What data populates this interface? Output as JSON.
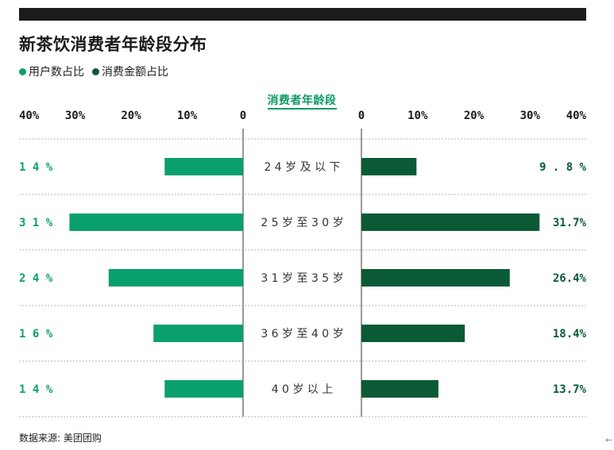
{
  "title": "新茶饮消费者年龄段分布",
  "legend": [
    {
      "label": "用户数占比",
      "color": "#0aa06e"
    },
    {
      "label": "消费金额占比",
      "color": "#0b5a36"
    }
  ],
  "center_title": "消费者年龄段",
  "source": "数据来源: 美团团购",
  "corner_arrow": "←",
  "colors": {
    "user": "#0aa06e",
    "spend": "#0b5a36",
    "grid": "#b5b5b5"
  },
  "chart_data": {
    "type": "bar",
    "categories": [
      "24岁及以下",
      "25岁至30岁",
      "31岁至35岁",
      "36岁至40岁",
      "40岁以上"
    ],
    "category_labels": [
      "2 4 岁 及 以 下",
      "2 5 岁 至 3 0 岁",
      "3 1 岁 至 3 5 岁",
      "3 6 岁 至 4 0 岁",
      "4 0 岁 以 上"
    ],
    "series": [
      {
        "name": "用户数占比",
        "values": [
          14,
          31,
          24,
          16,
          14
        ],
        "labels": [
          "1 4 %",
          "3 1 %",
          "2 4 %",
          "1 6 %",
          "1 4 %"
        ]
      },
      {
        "name": "消费金额占比",
        "values": [
          9.8,
          31.7,
          26.4,
          18.4,
          13.7
        ],
        "labels": [
          "9 . 8 %",
          "31.7%",
          "26.4%",
          "18.4%",
          "13.7%"
        ]
      }
    ],
    "left_ticks": [
      "40%",
      "30%",
      "20%",
      "10%",
      "0"
    ],
    "right_ticks": [
      "0",
      "10%",
      "20%",
      "30%",
      "40%"
    ],
    "xlim": [
      0,
      40
    ]
  }
}
